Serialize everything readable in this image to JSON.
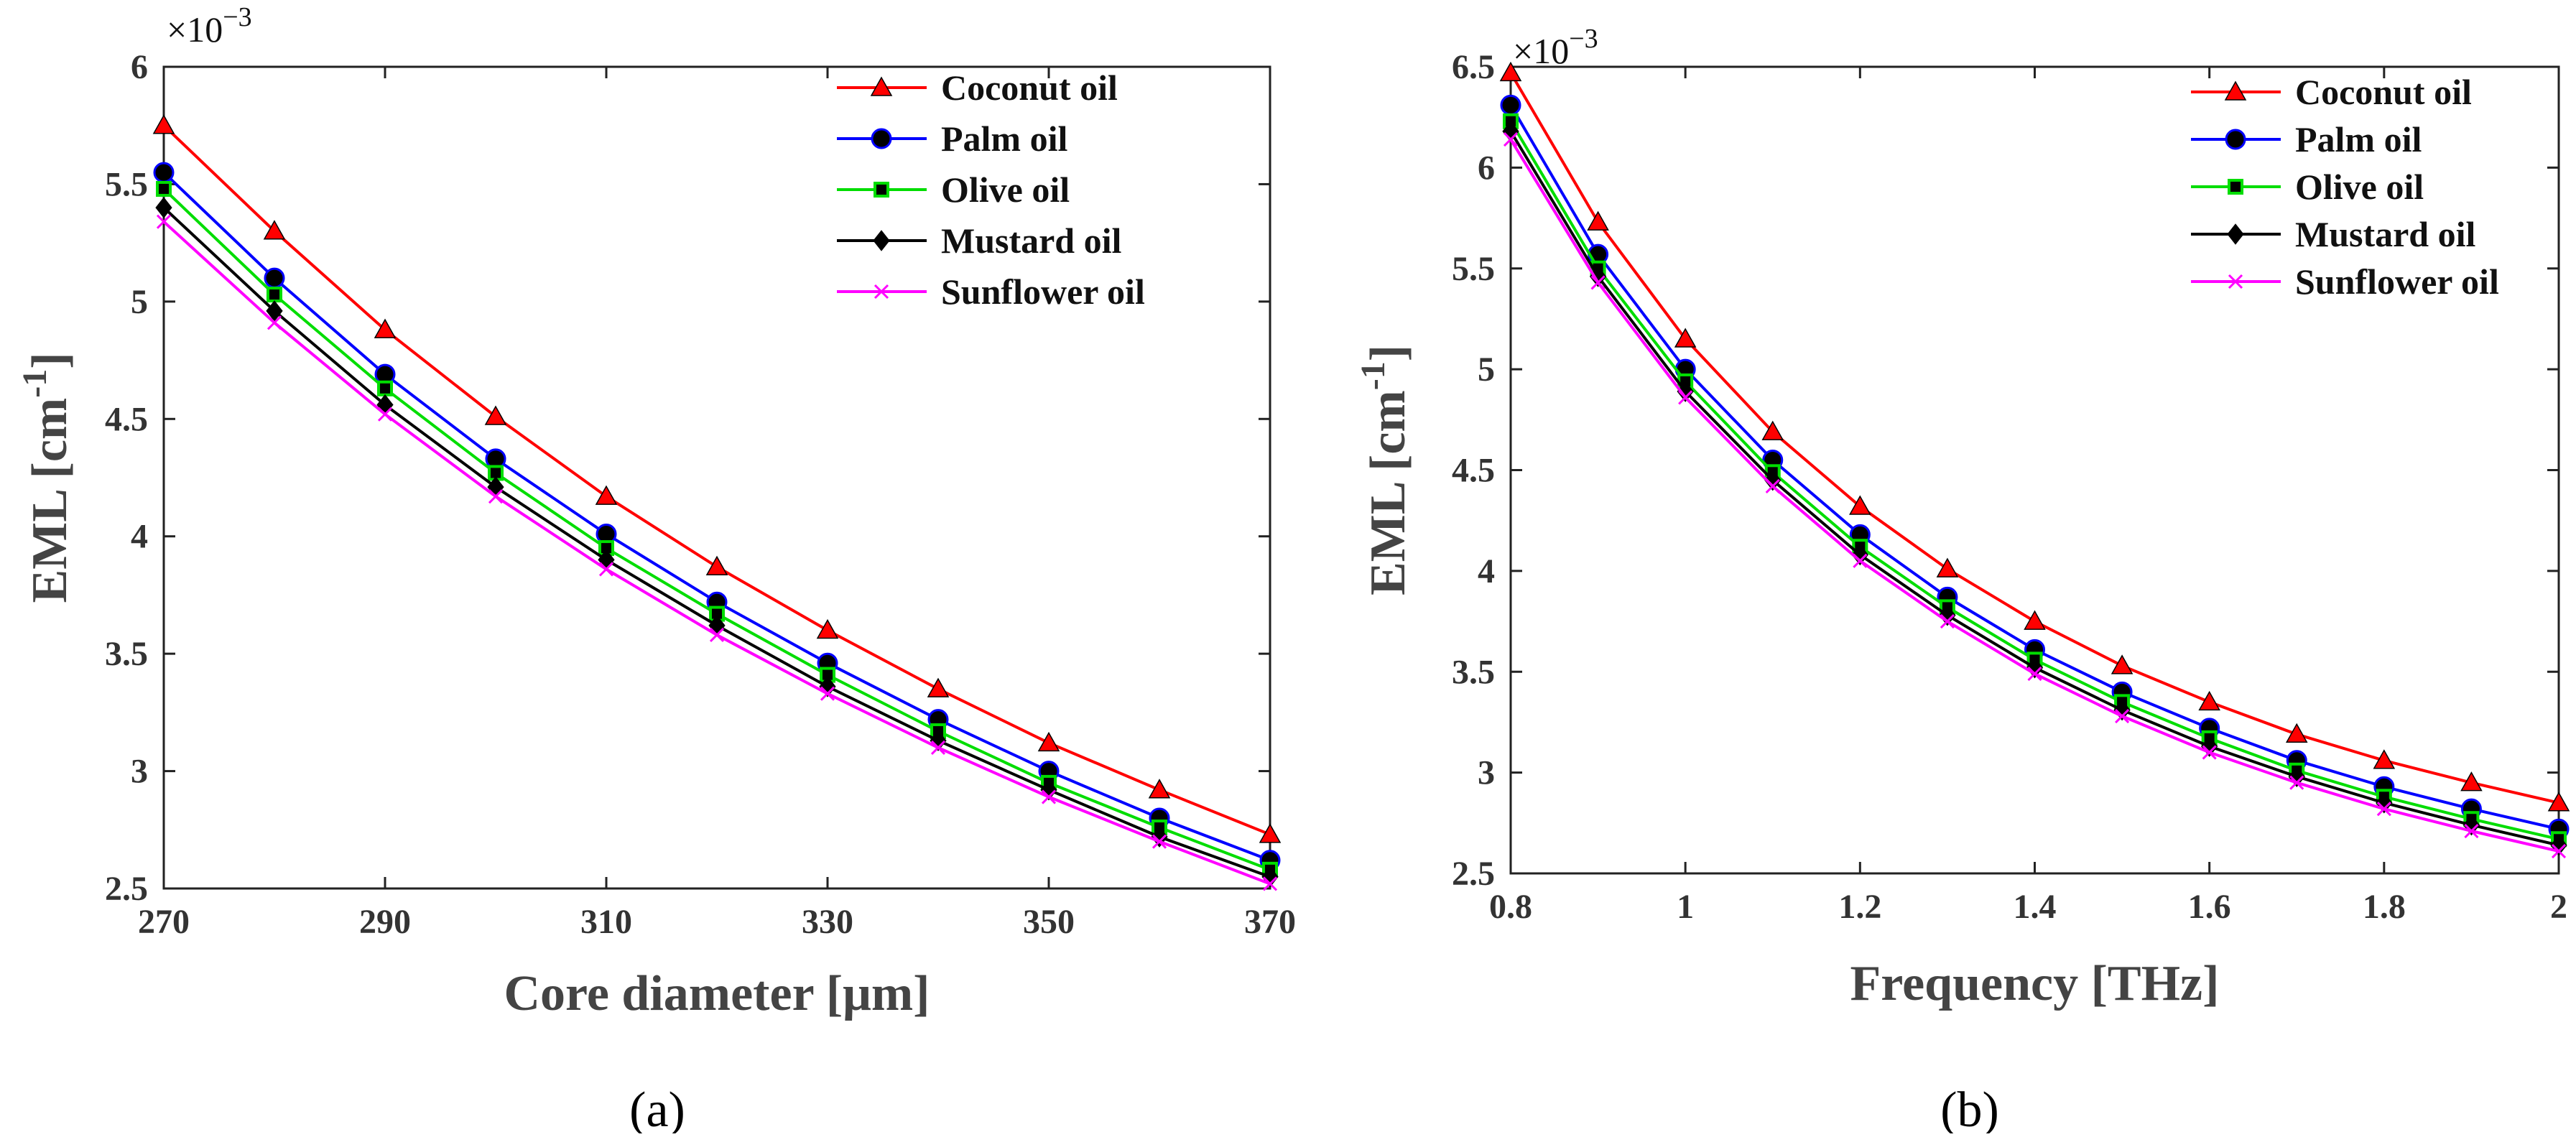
{
  "figure_captions": [
    "(a)",
    "(b)"
  ],
  "chart_data": [
    {
      "type": "line",
      "caption": "(a)",
      "xlabel": "Core diameter [μm]",
      "ylabel": "EML [cm",
      "ylabel_sup": "-1",
      "ylabel_close": "]",
      "y_multiplier": "×10",
      "y_multiplier_exp": "−3",
      "xlim": [
        270,
        370
      ],
      "ylim": [
        2.5,
        6
      ],
      "xticks": [
        270,
        290,
        310,
        330,
        350,
        370
      ],
      "xtick_labels": [
        "270",
        "290",
        "310",
        "330",
        "350",
        "370"
      ],
      "yticks": [
        2.5,
        3,
        3.5,
        4,
        4.5,
        5,
        5.5,
        6
      ],
      "ytick_labels": [
        "2.5",
        "3",
        "3.5",
        "4",
        "4.5",
        "5",
        "5.5",
        "6"
      ],
      "legend_position": "top-right",
      "x": [
        270,
        280,
        290,
        300,
        310,
        320,
        330,
        340,
        350,
        360,
        370
      ],
      "series": [
        {
          "name": "Coconut oil",
          "color": "#ff0000",
          "marker": "triangle",
          "values": [
            5.75,
            5.3,
            4.88,
            4.51,
            4.17,
            3.87,
            3.6,
            3.35,
            3.12,
            2.92,
            2.73
          ]
        },
        {
          "name": "Palm oil",
          "color": "#0000ff",
          "marker": "circle",
          "values": [
            5.55,
            5.1,
            4.69,
            4.33,
            4.01,
            3.72,
            3.46,
            3.22,
            3.0,
            2.8,
            2.62
          ]
        },
        {
          "name": "Olive oil",
          "color": "#00dd00",
          "marker": "square",
          "values": [
            5.48,
            5.03,
            4.63,
            4.27,
            3.95,
            3.67,
            3.41,
            3.17,
            2.95,
            2.76,
            2.58
          ]
        },
        {
          "name": "Mustard oil",
          "color": "#000000",
          "marker": "diamond",
          "values": [
            5.4,
            4.96,
            4.56,
            4.21,
            3.9,
            3.62,
            3.36,
            3.13,
            2.92,
            2.72,
            2.55
          ]
        },
        {
          "name": "Sunflower oil",
          "color": "#ff00ff",
          "marker": "x",
          "values": [
            5.34,
            4.91,
            4.52,
            4.17,
            3.86,
            3.58,
            3.33,
            3.1,
            2.89,
            2.7,
            2.52
          ]
        }
      ]
    },
    {
      "type": "line",
      "caption": "(b)",
      "xlabel": "Frequency [THz]",
      "ylabel": "EML [cm",
      "ylabel_sup": "-1",
      "ylabel_close": "]",
      "y_multiplier": "×10",
      "y_multiplier_exp": "−3",
      "xlim": [
        0.8,
        2
      ],
      "ylim": [
        2.5,
        6.5
      ],
      "xticks": [
        0.8,
        1,
        1.2,
        1.4,
        1.6,
        1.8,
        2
      ],
      "xtick_labels": [
        "0.8",
        "1",
        "1.2",
        "1.4",
        "1.6",
        "1.8",
        "2"
      ],
      "yticks": [
        2.5,
        3,
        3.5,
        4,
        4.5,
        5,
        5.5,
        6,
        6.5
      ],
      "ytick_labels": [
        "2.5",
        "3",
        "3.5",
        "4",
        "4.5",
        "5",
        "5.5",
        "6",
        "6.5"
      ],
      "legend_position": "top-right",
      "x": [
        0.8,
        0.9,
        1.0,
        1.1,
        1.2,
        1.3,
        1.4,
        1.5,
        1.6,
        1.7,
        1.8,
        1.9,
        2.0
      ],
      "series": [
        {
          "name": "Coconut oil",
          "color": "#ff0000",
          "marker": "triangle",
          "values": [
            6.47,
            5.73,
            5.15,
            4.69,
            4.32,
            4.01,
            3.75,
            3.53,
            3.35,
            3.19,
            3.06,
            2.95,
            2.85
          ]
        },
        {
          "name": "Palm oil",
          "color": "#0000ff",
          "marker": "circle",
          "values": [
            6.31,
            5.57,
            5.0,
            4.55,
            4.18,
            3.87,
            3.61,
            3.4,
            3.22,
            3.06,
            2.93,
            2.82,
            2.72
          ]
        },
        {
          "name": "Olive oil",
          "color": "#00dd00",
          "marker": "square",
          "values": [
            6.23,
            5.5,
            4.94,
            4.49,
            4.12,
            3.82,
            3.56,
            3.35,
            3.17,
            3.01,
            2.88,
            2.77,
            2.67
          ]
        },
        {
          "name": "Mustard oil",
          "color": "#000000",
          "marker": "diamond",
          "values": [
            6.18,
            5.46,
            4.89,
            4.45,
            4.08,
            3.78,
            3.52,
            3.31,
            3.13,
            2.98,
            2.85,
            2.74,
            2.64
          ]
        },
        {
          "name": "Sunflower oil",
          "color": "#ff00ff",
          "marker": "x",
          "values": [
            6.14,
            5.43,
            4.86,
            4.42,
            4.05,
            3.75,
            3.49,
            3.28,
            3.1,
            2.95,
            2.82,
            2.71,
            2.61
          ]
        }
      ]
    }
  ]
}
